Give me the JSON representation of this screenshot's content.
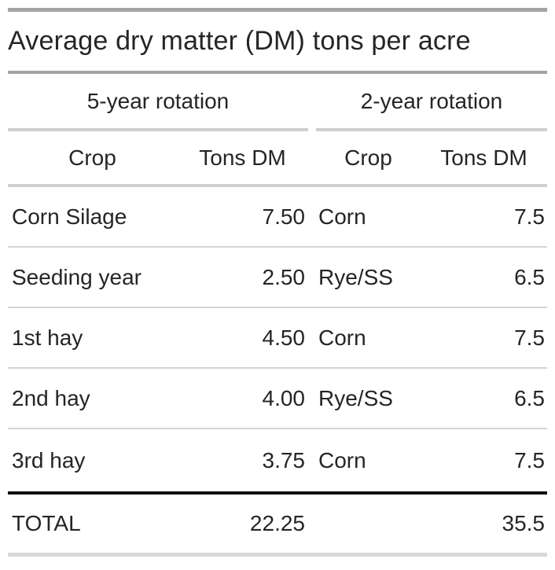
{
  "title": "Average dry matter (DM) tons per acre",
  "table": {
    "groups": [
      {
        "label": "5-year rotation",
        "columns": [
          "Crop",
          "Tons DM"
        ]
      },
      {
        "label": "2-year rotation",
        "columns": [
          "Crop",
          "Tons DM"
        ]
      }
    ],
    "rows": [
      {
        "crop5": "Corn Silage",
        "tons5": "7.50",
        "crop2": "Corn",
        "tons2": "7.5"
      },
      {
        "crop5": "Seeding year",
        "tons5": "2.50",
        "crop2": "Rye/SS",
        "tons2": "6.5"
      },
      {
        "crop5": "1st hay",
        "tons5": "4.50",
        "crop2": "Corn",
        "tons2": "7.5"
      },
      {
        "crop5": "2nd hay",
        "tons5": "4.00",
        "crop2": "Rye/SS",
        "tons2": "6.5"
      },
      {
        "crop5": "3rd hay",
        "tons5": "3.75",
        "crop2": "Corn",
        "tons2": "7.5"
      }
    ],
    "total": {
      "label": "TOTAL",
      "tons5": "22.25",
      "crop2": "",
      "tons2": "35.5"
    }
  },
  "chart_data": {
    "type": "table",
    "title": "Average dry matter (DM) tons per acre",
    "column_groups": [
      "5-year rotation",
      "2-year rotation"
    ],
    "columns": [
      "Crop",
      "Tons DM",
      "Crop",
      "Tons DM"
    ],
    "series": [
      {
        "name": "5-year rotation",
        "crops": [
          "Corn Silage",
          "Seeding year",
          "1st hay",
          "2nd hay",
          "3rd hay"
        ],
        "tons_dm": [
          7.5,
          2.5,
          4.5,
          4.0,
          3.75
        ],
        "total": 22.25
      },
      {
        "name": "2-year rotation",
        "crops": [
          "Corn",
          "Rye/SS",
          "Corn",
          "Rye/SS",
          "Corn"
        ],
        "tons_dm": [
          7.5,
          6.5,
          7.5,
          6.5,
          7.5
        ],
        "total": 35.5
      }
    ],
    "total_row_label": "TOTAL"
  },
  "colors": {
    "text": "#252525",
    "rule_medium_gray": "#a3a3a3",
    "rule_light_gray": "#cfcfcf",
    "row_separator": "#d4d4d4",
    "rule_black": "#111111",
    "rule_bottom_gray": "#d9d9d9",
    "background": "#ffffff"
  }
}
